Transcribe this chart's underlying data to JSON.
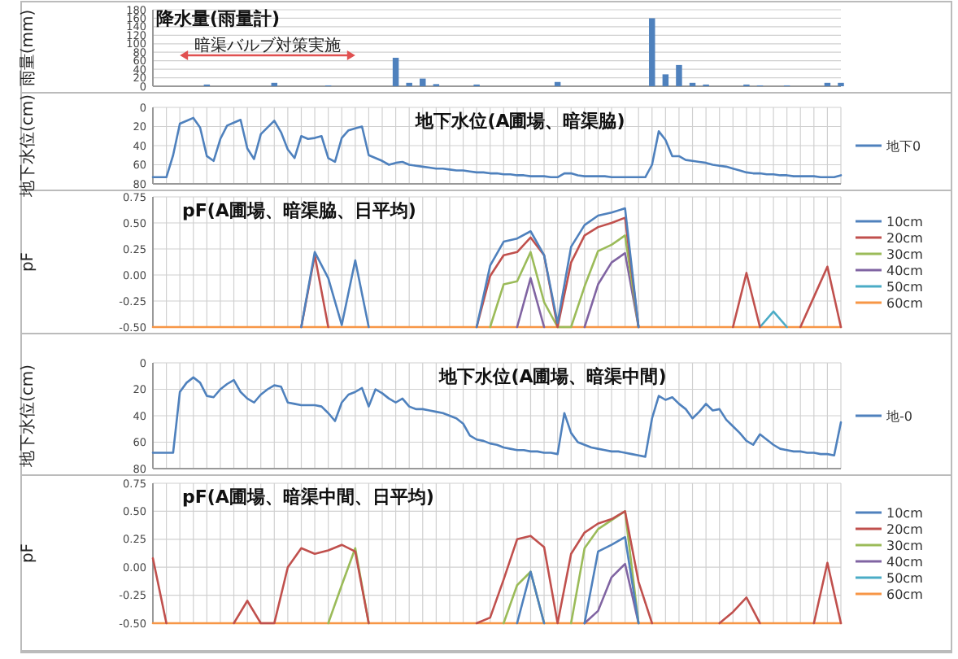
{
  "chart_data": [
    {
      "type": "bar",
      "title": "降水量(雨量計)",
      "ylabel": "雨量(mm)",
      "categories": [
        null,
        null,
        null,
        null,
        null,
        null,
        null,
        null,
        null,
        null,
        null,
        null,
        null,
        null,
        null,
        null,
        null,
        null,
        null,
        null,
        null,
        null,
        null,
        null,
        null,
        null,
        null,
        null,
        null,
        null,
        null,
        null,
        null,
        null,
        null,
        null,
        null,
        null,
        null,
        null,
        null,
        null,
        null,
        null,
        null,
        null,
        null,
        null,
        null,
        null,
        null,
        null
      ],
      "values": [
        null,
        null,
        null,
        null,
        4,
        null,
        null,
        null,
        null,
        8,
        null,
        null,
        null,
        2,
        null,
        null,
        null,
        null,
        67,
        8,
        18,
        5,
        null,
        null,
        4,
        null,
        null,
        null,
        null,
        null,
        10,
        null,
        null,
        null,
        null,
        null,
        null,
        160,
        28,
        50,
        8,
        4,
        null,
        null,
        4,
        2,
        null,
        2,
        null,
        null,
        8,
        8
      ],
      "color": "#4f81bd",
      "ylim": [
        0,
        180
      ],
      "yticks": [
        0,
        20,
        40,
        60,
        80,
        100,
        120,
        140,
        160,
        180
      ],
      "grid": "y",
      "annotations": [
        "暗渠バルブ対策実施"
      ]
    },
    {
      "type": "line",
      "title": "地下水位(A圃場、暗渠脇)",
      "ylabel": "地下水位(cm)",
      "legend": "right",
      "grid": true,
      "categories": [
        null,
        null,
        null,
        null,
        null,
        null,
        null,
        null,
        null,
        null,
        null,
        null,
        null,
        null,
        null,
        null,
        null,
        null,
        null,
        null,
        null,
        null,
        null,
        null,
        null,
        null,
        null,
        null,
        null,
        null,
        null,
        null,
        null,
        null,
        null,
        null,
        null,
        null,
        null,
        null,
        null,
        null,
        null,
        null,
        null,
        null,
        null,
        null,
        null,
        null,
        null,
        null,
        null,
        null,
        null,
        null,
        null,
        null,
        null,
        null,
        null,
        null,
        null,
        null,
        null,
        null,
        null,
        null,
        null,
        null,
        null,
        null,
        null,
        null,
        null,
        null,
        null,
        null,
        null,
        null,
        null,
        null,
        null,
        null,
        null,
        null,
        null,
        null,
        null,
        null,
        null,
        null,
        null,
        null,
        null,
        null,
        null,
        null,
        null,
        null,
        null,
        null,
        null
      ],
      "ylim": [
        80,
        0
      ],
      "yticks": [
        0,
        20,
        40,
        60,
        80
      ],
      "series": [
        {
          "name": "地下0",
          "color": "#4f81bd",
          "values": [
            73,
            73,
            73,
            50,
            17,
            14,
            11,
            21,
            51,
            56,
            33,
            19,
            16,
            13,
            43,
            54,
            28,
            21,
            14,
            26,
            44,
            53,
            30,
            33,
            32,
            30,
            53,
            57,
            32,
            24,
            22,
            20,
            50,
            53,
            56,
            60,
            58,
            57,
            60,
            61,
            62,
            63,
            64,
            64,
            65,
            66,
            66,
            67,
            68,
            68,
            69,
            69,
            70,
            70,
            71,
            71,
            72,
            72,
            72,
            73,
            73,
            69,
            69,
            71,
            72,
            72,
            72,
            72,
            73,
            73,
            73,
            73,
            73,
            73,
            60,
            25,
            34,
            51,
            51,
            55,
            56,
            57,
            58,
            60,
            61,
            62,
            64,
            66,
            68,
            69,
            69,
            70,
            70,
            71,
            71,
            72,
            72,
            72,
            72,
            73,
            73,
            73,
            71
          ]
        }
      ]
    },
    {
      "type": "line",
      "title": "pF(A圃場、暗渠脇、日平均)",
      "ylabel": "pF",
      "legend": "right",
      "grid": true,
      "categories": [
        null,
        null,
        null,
        null,
        null,
        null,
        null,
        null,
        null,
        null,
        null,
        null,
        null,
        null,
        null,
        null,
        null,
        null,
        null,
        null,
        null,
        null,
        null,
        null,
        null,
        null,
        null,
        null,
        null,
        null,
        null,
        null,
        null,
        null,
        null,
        null,
        null,
        null,
        null,
        null,
        null,
        null,
        null,
        null,
        null,
        null,
        null,
        null,
        null,
        null,
        null,
        null
      ],
      "ylim": [
        -0.5,
        0.75
      ],
      "yticks": [
        {
          "value": -0.5,
          "label": "-0.50"
        },
        {
          "value": -0.25,
          "label": "-0.25"
        },
        {
          "value": 0,
          "label": "0.00"
        },
        {
          "value": 0.25,
          "label": "0.25"
        },
        {
          "value": 0.5,
          "label": "0.50"
        },
        {
          "value": 0.75,
          "label": "0.75"
        }
      ],
      "series": [
        {
          "name": "10cm",
          "color": "#4f81bd",
          "values": [
            null,
            null,
            null,
            null,
            null,
            null,
            null,
            null,
            null,
            null,
            null,
            -0.5,
            0.22,
            -0.03,
            -0.48,
            0.14,
            -0.5,
            null,
            null,
            null,
            null,
            null,
            null,
            null,
            -0.5,
            0.09,
            0.32,
            0.35,
            0.42,
            0.19,
            -0.46,
            0.27,
            0.48,
            0.57,
            0.6,
            0.64,
            -0.5,
            null,
            null,
            null,
            null,
            null,
            null,
            null,
            null,
            null,
            null,
            null,
            null,
            null,
            null,
            null
          ]
        },
        {
          "name": "20cm",
          "color": "#c0504d",
          "values": [
            null,
            null,
            null,
            null,
            null,
            null,
            null,
            null,
            null,
            null,
            null,
            -0.5,
            0.19,
            -0.5,
            null,
            null,
            null,
            null,
            null,
            null,
            null,
            null,
            null,
            null,
            -0.5,
            -0.01,
            0.19,
            0.22,
            0.36,
            0.19,
            -0.5,
            0.12,
            0.38,
            0.46,
            0.5,
            0.55,
            -0.5,
            null,
            null,
            null,
            null,
            null,
            null,
            -0.5,
            0.02,
            -0.5,
            null,
            null,
            -0.5,
            -0.21,
            0.08,
            -0.5
          ]
        },
        {
          "name": "30cm",
          "color": "#9bbb59",
          "values": [
            null,
            null,
            null,
            null,
            null,
            null,
            null,
            null,
            null,
            null,
            null,
            null,
            null,
            null,
            null,
            null,
            null,
            null,
            null,
            null,
            null,
            null,
            null,
            null,
            null,
            -0.5,
            -0.09,
            -0.06,
            0.22,
            -0.26,
            -0.5,
            -0.5,
            -0.11,
            0.23,
            0.29,
            0.38,
            -0.5,
            null,
            null,
            null,
            null,
            null,
            null,
            null,
            null,
            null,
            null,
            null,
            null,
            null,
            null,
            null
          ]
        },
        {
          "name": "40cm",
          "color": "#8064a2",
          "values": [
            null,
            null,
            null,
            null,
            null,
            null,
            null,
            null,
            null,
            null,
            null,
            null,
            null,
            null,
            null,
            null,
            null,
            null,
            null,
            null,
            null,
            null,
            null,
            null,
            null,
            null,
            null,
            -0.5,
            -0.03,
            -0.5,
            null,
            null,
            -0.5,
            -0.09,
            0.12,
            0.21,
            -0.5,
            null,
            null,
            null,
            null,
            null,
            null,
            null,
            null,
            null,
            null,
            null,
            null,
            null,
            null,
            null
          ]
        },
        {
          "name": "50cm",
          "color": "#4bacc6",
          "values": [
            null,
            null,
            null,
            null,
            null,
            null,
            null,
            null,
            null,
            null,
            null,
            null,
            null,
            null,
            null,
            null,
            null,
            null,
            null,
            null,
            null,
            null,
            null,
            null,
            null,
            null,
            null,
            null,
            null,
            null,
            null,
            null,
            null,
            null,
            null,
            null,
            null,
            null,
            null,
            null,
            null,
            null,
            null,
            null,
            null,
            -0.5,
            -0.35,
            -0.5,
            null,
            null,
            null,
            null
          ]
        },
        {
          "name": "60cm",
          "color": "#f79646",
          "values": [
            -0.5,
            -0.5,
            -0.5,
            -0.5,
            -0.5,
            -0.5,
            -0.5,
            -0.5,
            -0.5,
            -0.5,
            -0.5,
            -0.5,
            -0.5,
            -0.5,
            -0.5,
            -0.5,
            -0.5,
            -0.5,
            -0.5,
            -0.5,
            -0.5,
            -0.5,
            -0.5,
            -0.5,
            -0.5,
            -0.5,
            -0.5,
            -0.5,
            -0.5,
            -0.5,
            -0.5,
            -0.5,
            -0.5,
            -0.5,
            -0.5,
            -0.5,
            -0.5,
            -0.5,
            -0.5,
            -0.5,
            -0.5,
            -0.5,
            -0.5,
            -0.5,
            -0.5,
            -0.5,
            -0.5,
            -0.5,
            -0.5,
            -0.5,
            -0.5,
            -0.5
          ]
        }
      ]
    },
    {
      "type": "line",
      "title": "地下水位(A圃場、暗渠中間)",
      "ylabel": "地下水位(cm)",
      "legend": "right",
      "grid": true,
      "categories": [
        null,
        null,
        null,
        null,
        null,
        null,
        null,
        null,
        null,
        null,
        null,
        null,
        null,
        null,
        null,
        null,
        null,
        null,
        null,
        null,
        null,
        null,
        null,
        null,
        null,
        null,
        null,
        null,
        null,
        null,
        null,
        null,
        null,
        null,
        null,
        null,
        null,
        null,
        null,
        null,
        null,
        null,
        null,
        null,
        null,
        null,
        null,
        null,
        null,
        null,
        null,
        null,
        null,
        null,
        null,
        null,
        null,
        null,
        null,
        null,
        null,
        null,
        null,
        null,
        null,
        null,
        null,
        null,
        null,
        null,
        null,
        null,
        null,
        null,
        null,
        null,
        null,
        null,
        null,
        null,
        null,
        null,
        null,
        null,
        null,
        null,
        null,
        null,
        null,
        null,
        null,
        null,
        null,
        null,
        null,
        null,
        null,
        null,
        null,
        null,
        null,
        null,
        null
      ],
      "ylim": [
        80,
        0
      ],
      "yticks": [
        0,
        20,
        40,
        60,
        80
      ],
      "series": [
        {
          "name": "地-0",
          "color": "#4f81bd",
          "values": [
            68,
            68,
            68,
            68,
            22,
            15,
            11,
            15,
            25,
            26,
            20,
            16,
            13,
            22,
            27,
            30,
            24,
            20,
            17,
            18,
            30,
            31,
            32,
            32,
            32,
            33,
            38,
            44,
            30,
            24,
            22,
            19,
            33,
            20,
            23,
            27,
            30,
            27,
            33,
            35,
            35,
            36,
            37,
            38,
            40,
            42,
            46,
            55,
            58,
            59,
            61,
            62,
            64,
            65,
            66,
            66,
            67,
            67,
            68,
            68,
            69,
            38,
            53,
            60,
            62,
            64,
            65,
            66,
            67,
            67,
            68,
            69,
            70,
            71,
            42,
            25,
            28,
            26,
            31,
            35,
            42,
            37,
            31,
            36,
            35,
            43,
            48,
            53,
            59,
            62,
            54,
            58,
            62,
            65,
            66,
            67,
            67,
            68,
            68,
            69,
            69,
            70,
            45
          ]
        }
      ]
    },
    {
      "type": "line",
      "title": "pF(A圃場、暗渠中間、日平均)",
      "ylabel": "pF",
      "legend": "right",
      "grid": true,
      "categories": [
        null,
        null,
        null,
        null,
        null,
        null,
        null,
        null,
        null,
        null,
        null,
        null,
        null,
        null,
        null,
        null,
        null,
        null,
        null,
        null,
        null,
        null,
        null,
        null,
        null,
        null,
        null,
        null,
        null,
        null,
        null,
        null,
        null,
        null,
        null,
        null,
        null,
        null,
        null,
        null,
        null,
        null,
        null,
        null,
        null,
        null,
        null,
        null,
        null,
        null,
        null,
        null
      ],
      "ylim": [
        -0.5,
        0.75
      ],
      "yticks": [
        {
          "value": -0.5,
          "label": "-0.50"
        },
        {
          "value": -0.25,
          "label": "-0.25"
        },
        {
          "value": 0,
          "label": "0.00"
        },
        {
          "value": 0.25,
          "label": "0.25"
        },
        {
          "value": 0.5,
          "label": "0.50"
        },
        {
          "value": 0.75,
          "label": "0.75"
        }
      ],
      "series": [
        {
          "name": "10cm",
          "color": "#4f81bd",
          "values": [
            null,
            null,
            null,
            null,
            null,
            null,
            null,
            null,
            null,
            null,
            null,
            null,
            null,
            null,
            null,
            null,
            null,
            null,
            null,
            null,
            null,
            null,
            null,
            null,
            null,
            null,
            null,
            -0.5,
            -0.04,
            -0.5,
            null,
            null,
            -0.5,
            0.14,
            0.2,
            0.27,
            -0.5,
            null,
            null,
            null,
            null,
            null,
            null,
            null,
            null,
            null,
            null,
            null,
            null,
            null,
            null,
            null
          ]
        },
        {
          "name": "20cm",
          "color": "#c0504d",
          "values": [
            0.08,
            -0.5,
            null,
            null,
            null,
            null,
            -0.5,
            -0.3,
            -0.5,
            -0.5,
            0,
            0.17,
            0.12,
            0.15,
            0.2,
            0.14,
            -0.5,
            null,
            null,
            null,
            null,
            null,
            null,
            null,
            -0.5,
            -0.45,
            -0.11,
            0.25,
            0.28,
            0.18,
            -0.5,
            0.12,
            0.31,
            0.39,
            0.43,
            0.5,
            -0.13,
            -0.5,
            null,
            null,
            null,
            null,
            -0.5,
            -0.4,
            -0.27,
            -0.5,
            null,
            null,
            null,
            -0.5,
            0.04,
            -0.5
          ]
        },
        {
          "name": "30cm",
          "color": "#9bbb59",
          "values": [
            null,
            null,
            null,
            null,
            null,
            null,
            null,
            null,
            null,
            null,
            null,
            null,
            null,
            -0.5,
            -0.16,
            0.17,
            -0.5,
            null,
            null,
            null,
            null,
            null,
            null,
            null,
            null,
            null,
            -0.5,
            -0.16,
            -0.04,
            -0.5,
            null,
            -0.5,
            0.17,
            0.34,
            0.42,
            0.5,
            -0.5,
            null,
            null,
            null,
            null,
            null,
            null,
            null,
            null,
            null,
            null,
            null,
            null,
            null,
            null,
            null
          ]
        },
        {
          "name": "40cm",
          "color": "#8064a2",
          "values": [
            null,
            null,
            null,
            null,
            null,
            null,
            null,
            null,
            null,
            null,
            null,
            null,
            null,
            null,
            null,
            null,
            null,
            null,
            null,
            null,
            null,
            null,
            null,
            null,
            null,
            null,
            null,
            null,
            null,
            null,
            null,
            null,
            -0.5,
            -0.39,
            -0.09,
            0.03,
            -0.5,
            null,
            null,
            null,
            null,
            null,
            null,
            null,
            null,
            null,
            null,
            null,
            null,
            null,
            null,
            null
          ]
        },
        {
          "name": "50cm",
          "color": "#4bacc6",
          "values": [
            null,
            null,
            null,
            null,
            null,
            null,
            null,
            null,
            null,
            null,
            null,
            null,
            null,
            null,
            null,
            null,
            null,
            null,
            null,
            null,
            null,
            null,
            null,
            null,
            null,
            null,
            null,
            null,
            null,
            null,
            null,
            null,
            null,
            null,
            null,
            null,
            null,
            null,
            null,
            null,
            null,
            null,
            null,
            null,
            null,
            null,
            null,
            null,
            null,
            null,
            null,
            null
          ]
        },
        {
          "name": "60cm",
          "color": "#f79646",
          "values": [
            -0.5,
            -0.5,
            -0.5,
            -0.5,
            -0.5,
            -0.5,
            -0.5,
            -0.5,
            -0.5,
            -0.5,
            -0.5,
            -0.5,
            -0.5,
            -0.5,
            -0.5,
            -0.5,
            -0.5,
            -0.5,
            -0.5,
            -0.5,
            -0.5,
            -0.5,
            -0.5,
            -0.5,
            -0.5,
            -0.5,
            -0.5,
            -0.5,
            -0.5,
            -0.5,
            -0.5,
            -0.5,
            -0.5,
            -0.5,
            -0.5,
            -0.5,
            -0.5,
            -0.5,
            -0.5,
            -0.5,
            -0.5,
            -0.5,
            -0.5,
            -0.5,
            -0.5,
            -0.5,
            -0.5,
            -0.5,
            -0.5,
            -0.5,
            -0.5,
            -0.5
          ]
        }
      ]
    }
  ]
}
